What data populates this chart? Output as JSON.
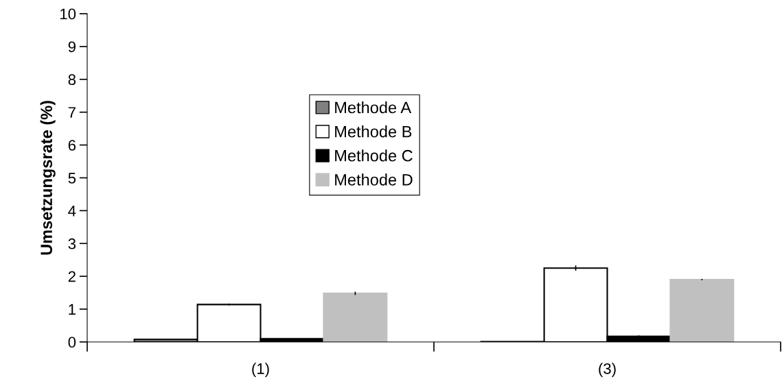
{
  "chart_data": {
    "type": "bar",
    "ylabel": "Umsetzungsrate (%)",
    "categories": [
      "(1)",
      "(3)"
    ],
    "series": [
      {
        "name": "Methode A",
        "color": "#808080",
        "values": [
          0.08,
          0.01
        ],
        "errors": [
          null,
          null
        ]
      },
      {
        "name": "Methode B",
        "color": "#ffffff",
        "values": [
          1.14,
          2.25
        ],
        "errors": [
          0.03,
          0.08
        ]
      },
      {
        "name": "Methode C",
        "color": "#000000",
        "values": [
          0.1,
          0.17
        ],
        "errors": [
          null,
          0.03
        ]
      },
      {
        "name": "Methode D",
        "color": "#c0c0c0",
        "values": [
          1.48,
          1.9
        ],
        "errors": [
          0.05,
          0.02
        ]
      }
    ],
    "ylim": [
      0,
      10
    ],
    "yticks": [
      0,
      1,
      2,
      3,
      4,
      5,
      6,
      7,
      8,
      9,
      10
    ],
    "grid": false,
    "legend": "center"
  }
}
